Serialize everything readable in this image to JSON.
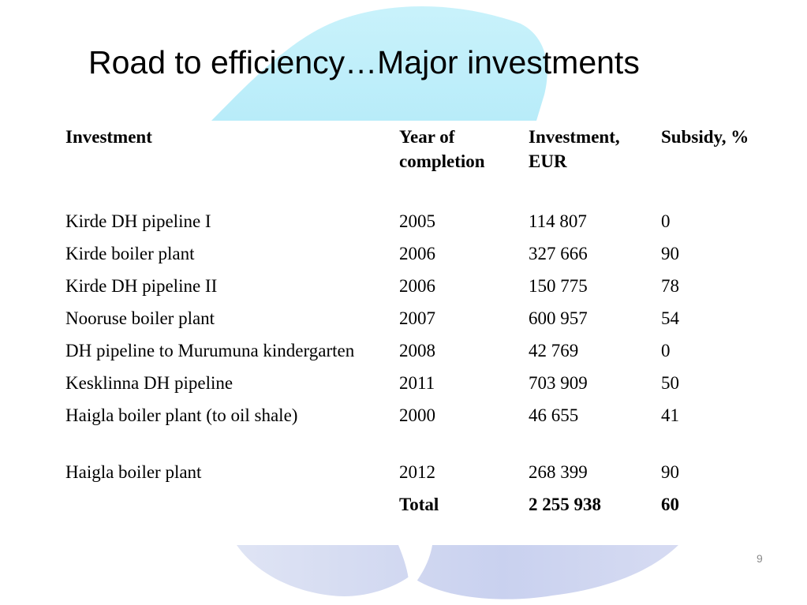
{
  "slide": {
    "title": "Road to efficiency…Major investments",
    "page_number": "9"
  },
  "table": {
    "headers": [
      "Investment",
      "Year of completion",
      "Investment, EUR",
      "Subsidy, %"
    ],
    "rows": [
      {
        "investment": "Kirde DH pipeline I",
        "year": "2005",
        "eur": "114 807",
        "subsidy": "0"
      },
      {
        "investment": "Kirde boiler plant",
        "year": "2006",
        "eur": "327 666",
        "subsidy": "90"
      },
      {
        "investment": "Kirde DH pipeline II",
        "year": "2006",
        "eur": "150 775",
        "subsidy": "78"
      },
      {
        "investment": "Nooruse boiler plant",
        "year": "2007",
        "eur": "600 957",
        "subsidy": "54"
      },
      {
        "investment": "DH pipeline to Murumuna kindergarten",
        "year": "2008",
        "eur": "42 769",
        "subsidy": "0"
      },
      {
        "investment": "Kesklinna DH pipeline",
        "year": "2011",
        "eur": "703 909",
        "subsidy": "50"
      },
      {
        "investment": "Haigla boiler plant (to oil shale)",
        "year": "2000",
        "eur": "46 655",
        "subsidy": "41"
      },
      {
        "investment": "Haigla boiler plant",
        "year": "2012",
        "eur": "268 399",
        "subsidy": "90"
      }
    ],
    "total": {
      "label": "Total",
      "eur": "2 255 938",
      "subsidy": "60"
    }
  },
  "colors": {
    "background_shape_top": "#c8f0fa",
    "background_shape_bottom": "#cfd6f0"
  }
}
